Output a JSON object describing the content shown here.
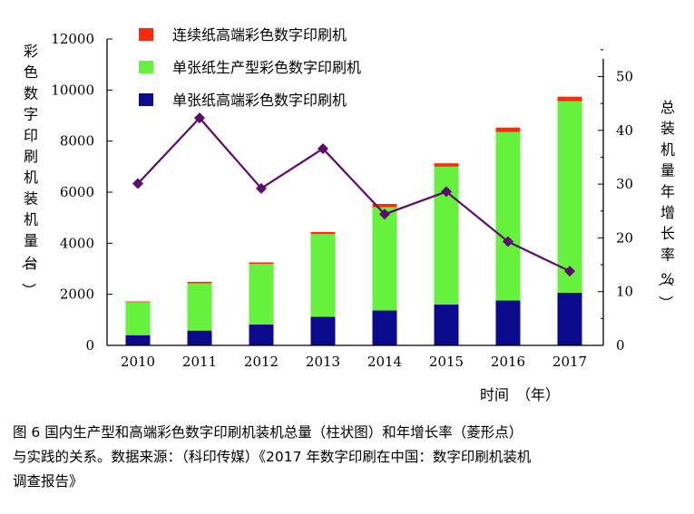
{
  "chart_data": {
    "type": "bar",
    "stacked": true,
    "categories": [
      "2010",
      "2011",
      "2012",
      "2013",
      "2014",
      "2015",
      "2016",
      "2017"
    ],
    "series": [
      {
        "name": "单张纸高端彩色数字印刷机",
        "color": "#0a0a8c",
        "axis": "left",
        "values": [
          400,
          580,
          820,
          1120,
          1370,
          1600,
          1760,
          2060
        ]
      },
      {
        "name": "单张纸生产型彩色数字印刷机",
        "color": "#66f23c",
        "axis": "left",
        "values": [
          1290,
          1850,
          2370,
          3240,
          4040,
          5400,
          6600,
          7500
        ]
      },
      {
        "name": "连续纸高端彩色数字印刷机",
        "color": "#ff2a0a",
        "axis": "left",
        "values": [
          30,
          60,
          60,
          80,
          130,
          130,
          170,
          180
        ]
      },
      {
        "name": "年增长率",
        "type": "line",
        "marker": "diamond",
        "color": "#5c0a6e",
        "axis": "right",
        "values": [
          30.1,
          42.3,
          29.2,
          36.6,
          24.4,
          28.6,
          19.3,
          13.8
        ]
      }
    ],
    "y_left": {
      "label": "彩色数字印刷机装机量（台）",
      "lim": [
        0,
        12000
      ],
      "ticks": [
        "0",
        "2000",
        "4000",
        "6000",
        "8000",
        "10000",
        "12000"
      ]
    },
    "y_right": {
      "label": "总装机量年增长率（%）",
      "lim": [
        0,
        57
      ],
      "ticks": [
        "0",
        "10",
        "20",
        "30",
        "40",
        "50"
      ]
    },
    "xlabel": "时间　（年）",
    "legend_position": "top-left",
    "grid": false
  },
  "caption": {
    "lines": [
      "图 6  国内生产型和高端彩色数字印刷机装机总量（柱状图）和年增长率（菱形点）",
      "与实践的关系。数据来源：（科印传媒）《2017 年数字印刷在中国：数字印刷机装机",
      "调查报告》"
    ]
  }
}
